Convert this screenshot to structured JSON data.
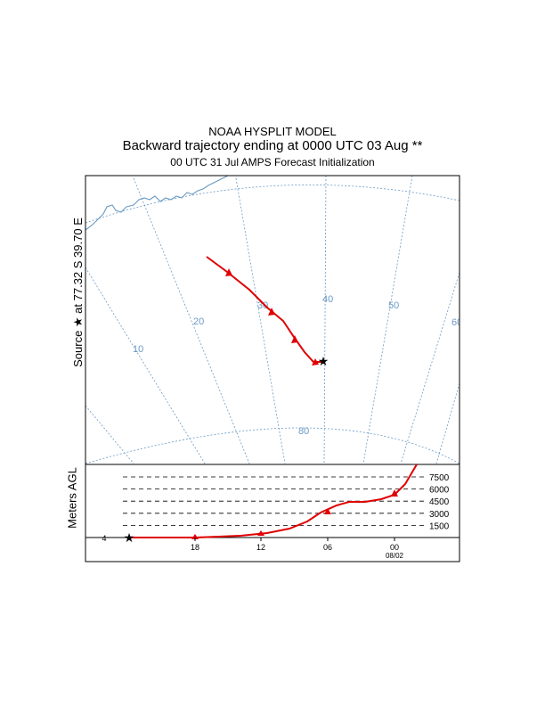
{
  "title": {
    "line1": "NOAA HYSPLIT MODEL",
    "line2": "Backward trajectory ending at 0000 UTC 03 Aug **",
    "line3": "00 UTC 31 Jul    AMPS  Forecast Initialization"
  },
  "source_label": "Source ★ at   77.32 S   39.70 E",
  "source": {
    "lat": -77.32,
    "lon": 39.7,
    "marker": "star-icon"
  },
  "map": {
    "longitude_labels": [
      "10",
      "20",
      "30",
      "40",
      "50",
      "60"
    ],
    "latitude_labels": [
      "80"
    ],
    "grid_color": "#6b9ac4",
    "coast_color": "#6b9ac4"
  },
  "trajectory": {
    "color": "#e00000",
    "marker": "triangle-icon"
  },
  "height_panel": {
    "ylabel": "Meters AGL",
    "levels": [
      7500,
      6000,
      4500,
      3000,
      1500
    ],
    "level_labels": [
      "7500",
      "6000",
      "4500",
      "3000",
      "1500"
    ],
    "time_labels": [
      "18",
      "12",
      "06",
      "00"
    ],
    "date_label": "08/02",
    "left_tick": "4"
  },
  "chart_data": {
    "type": "line",
    "title": "Backward trajectory ending at 0000 UTC 03 Aug **",
    "xlabel": "",
    "ylabel": "Meters AGL",
    "x": [
      "18",
      "12",
      "06",
      "00"
    ],
    "series": [
      {
        "values": [
          20,
          80,
          2900,
          5200
        ]
      }
    ],
    "ylim": [
      0,
      7500
    ]
  }
}
